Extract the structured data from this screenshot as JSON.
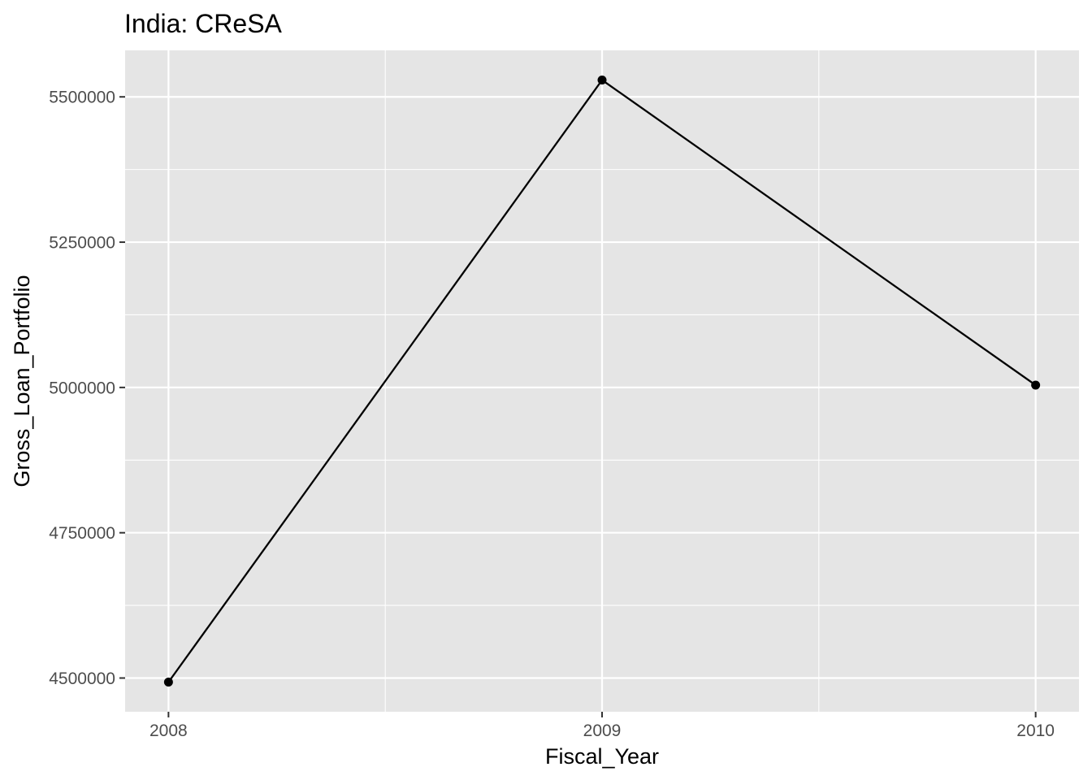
{
  "chart_data": {
    "type": "line",
    "title": "India:  CReSA",
    "xlabel": "Fiscal_Year",
    "ylabel": "Gross_Loan_Portfolio",
    "x": [
      2008,
      2009,
      2010
    ],
    "x_tick_labels": [
      "2008",
      "2009",
      "2010"
    ],
    "series": [
      {
        "values": [
          4493000,
          5529000,
          5004000
        ],
        "color": "#000000",
        "markers": true
      }
    ],
    "y_ticks": [
      4500000,
      4750000,
      5000000,
      5250000,
      5500000
    ],
    "y_tick_labels": [
      "4500000",
      "4750000",
      "5000000",
      "5250000",
      "5500000"
    ],
    "xlim": [
      2007.9,
      2010.1
    ],
    "ylim": [
      4442000,
      5580000
    ],
    "grid": true,
    "legend": "none",
    "panel_color": "#e5e5e5",
    "grid_color": "#ffffff",
    "tick_label_color": "#4d4d4d"
  }
}
